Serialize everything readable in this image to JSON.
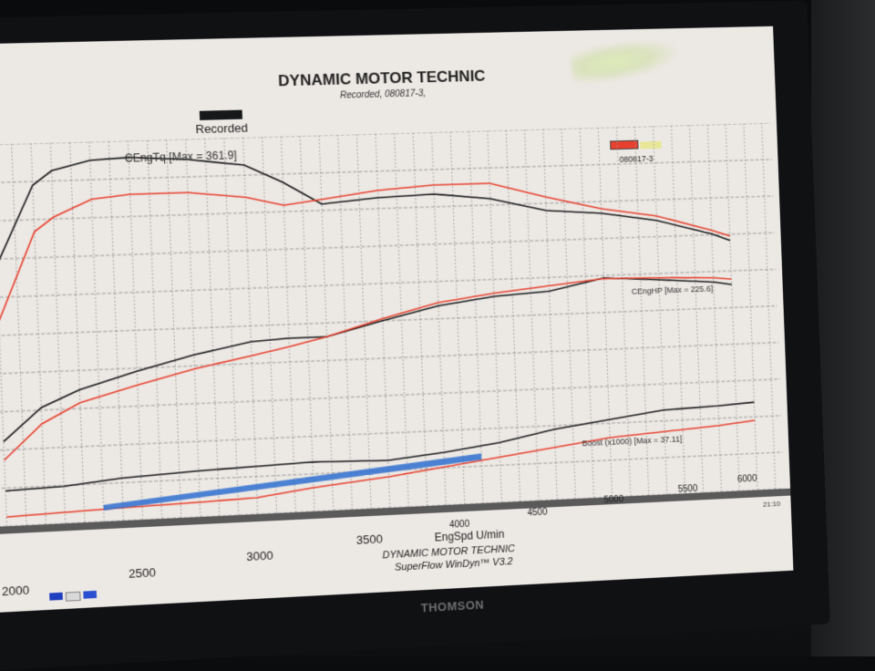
{
  "monitor": {
    "brand": "THOMSON"
  },
  "chart": {
    "title": "DYNAMIC MOTOR TECHNIC",
    "subtitle": "Recorded, 080817-3,",
    "legend": [
      {
        "label": "Recorded",
        "color": "#16181a"
      },
      {
        "label": "080817-3",
        "color": "#e8402e"
      }
    ],
    "series_labels": {
      "torque": "CEngTq [Max = 361.9]",
      "hp": "CEngHP [Max = 225.6]",
      "boost": "Boost (x1000) [Max = 37.11]"
    },
    "x_ticks_large": [
      "2000",
      "2500",
      "3000",
      "3500"
    ],
    "x_ticks_small": [
      "4000",
      "4500",
      "5000",
      "5500",
      "6000"
    ],
    "x_label": "EngSpd U/min",
    "footer_line1": "DYNAMIC MOTOR TECHNIC",
    "footer_line2": "SuperFlow WinDyn™ V3.2",
    "timestamp": "21:10"
  },
  "chart_data": {
    "type": "line",
    "title": "DYNAMIC MOTOR TECHNIC",
    "subtitle": "Recorded, 080817-3,",
    "xlabel": "EngSpd U/min",
    "ylabel": "",
    "xlim": [
      2000,
      6100
    ],
    "x_ticks": [
      2000,
      2500,
      3000,
      3500,
      4000,
      4500,
      5000,
      5500,
      6000
    ],
    "grid": true,
    "legend_position": "top",
    "legend": [
      "Recorded",
      "080817-3"
    ],
    "series": [
      {
        "name": "CEngTq (Recorded)",
        "color": "#16181a",
        "max": 361.9,
        "x": [
          2000,
          2200,
          2300,
          2500,
          2700,
          3000,
          3300,
          3500,
          3700,
          4000,
          4300,
          4600,
          4900,
          5200,
          5500,
          5800,
          5900
        ],
        "y": [
          250,
          335,
          350,
          360,
          361.9,
          358,
          350,
          330,
          305,
          310,
          312,
          305,
          290,
          285,
          275,
          258,
          250
        ]
      },
      {
        "name": "CEngTq (080817-3)",
        "color": "#e8402e",
        "x": [
          2000,
          2200,
          2300,
          2500,
          2700,
          3000,
          3300,
          3500,
          3700,
          4000,
          4300,
          4600,
          4900,
          5200,
          5500,
          5800,
          5900
        ],
        "y": [
          190,
          285,
          300,
          318,
          322,
          322,
          315,
          305,
          310,
          318,
          322,
          322,
          305,
          290,
          280,
          262,
          255
        ]
      },
      {
        "name": "CEngHP (Recorded)",
        "color": "#16181a",
        "max": 225.6,
        "x": [
          2000,
          2200,
          2400,
          2700,
          3000,
          3300,
          3500,
          3700,
          4000,
          4300,
          4600,
          4900,
          5200,
          5500,
          5800,
          5900
        ],
        "y": [
          95,
          125,
          140,
          155,
          168,
          178,
          180,
          180,
          193,
          205,
          212,
          215,
          225.6,
          222,
          218,
          215
        ]
      },
      {
        "name": "CEngHP (080817-3)",
        "color": "#e8402e",
        "x": [
          2000,
          2200,
          2400,
          2700,
          3000,
          3300,
          3500,
          3700,
          4000,
          4300,
          4600,
          4900,
          5200,
          5500,
          5800,
          5900
        ],
        "y": [
          78,
          110,
          128,
          142,
          155,
          165,
          172,
          180,
          195,
          208,
          215,
          220,
          225,
          224,
          222,
          220
        ]
      },
      {
        "name": "Boost x1000 (Recorded)",
        "color": "#16181a",
        "max": 37.11,
        "x": [
          2000,
          2300,
          2600,
          3000,
          3300,
          3600,
          4000,
          4300,
          4600,
          4900,
          5200,
          5500,
          5800,
          6000
        ],
        "y": [
          22,
          22.5,
          24,
          25,
          25.5,
          26,
          25.5,
          27,
          29,
          32,
          34,
          36,
          36.5,
          37.11
        ]
      },
      {
        "name": "Boost x1000 (080817-3)",
        "color": "#e8402e",
        "x": [
          2000,
          2300,
          2600,
          3000,
          3300,
          3600,
          4000,
          4300,
          4600,
          4900,
          5200,
          5500,
          5800,
          6000
        ],
        "y": [
          15,
          15.5,
          16,
          16.5,
          17,
          19,
          21,
          23,
          25,
          27,
          29,
          30,
          31,
          32
        ]
      }
    ],
    "annotations": [
      "CEngTq [Max = 361.9]",
      "CEngHP [Max = 225.6]",
      "Boost (x1000) [Max = 37.11]"
    ]
  }
}
